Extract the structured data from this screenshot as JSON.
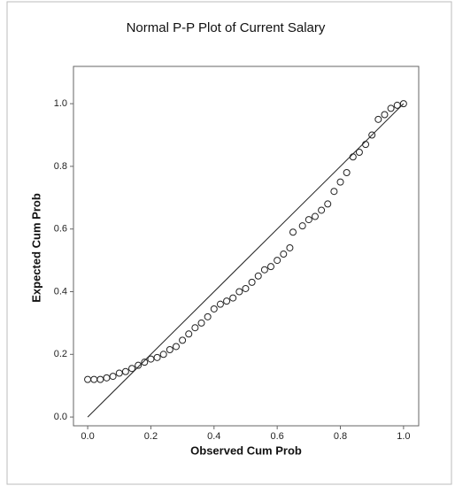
{
  "chart_data": {
    "type": "scatter",
    "title": "Normal P-P Plot of Current Salary",
    "xlabel": "Observed Cum Prob",
    "ylabel": "Expected Cum Prob",
    "x": [
      0.0,
      0.02,
      0.04,
      0.06,
      0.08,
      0.1,
      0.12,
      0.14,
      0.16,
      0.18,
      0.2,
      0.22,
      0.24,
      0.26,
      0.28,
      0.3,
      0.32,
      0.34,
      0.36,
      0.38,
      0.4,
      0.42,
      0.44,
      0.46,
      0.48,
      0.5,
      0.52,
      0.54,
      0.56,
      0.58,
      0.6,
      0.62,
      0.64,
      0.65,
      0.68,
      0.7,
      0.72,
      0.74,
      0.76,
      0.78,
      0.8,
      0.82,
      0.84,
      0.86,
      0.88,
      0.9,
      0.92,
      0.94,
      0.96,
      0.98,
      1.0
    ],
    "values": [
      0.12,
      0.12,
      0.12,
      0.125,
      0.13,
      0.14,
      0.145,
      0.155,
      0.165,
      0.175,
      0.185,
      0.19,
      0.2,
      0.215,
      0.225,
      0.245,
      0.265,
      0.285,
      0.3,
      0.32,
      0.345,
      0.36,
      0.37,
      0.38,
      0.4,
      0.41,
      0.43,
      0.45,
      0.47,
      0.48,
      0.5,
      0.52,
      0.54,
      0.59,
      0.61,
      0.63,
      0.64,
      0.66,
      0.68,
      0.72,
      0.75,
      0.78,
      0.83,
      0.845,
      0.87,
      0.9,
      0.95,
      0.965,
      0.985,
      0.995,
      1.0
    ],
    "reference_line": {
      "x": [
        0,
        1
      ],
      "y": [
        0,
        1
      ]
    },
    "marker_color": "#222222",
    "xlim": [
      -0.045,
      1.048
    ],
    "ylim": [
      -0.028,
      1.119
    ],
    "xticks": [
      {
        "value": 0,
        "label": "0.0"
      },
      0.2,
      0.4,
      0.6,
      0.8,
      {
        "value": 1,
        "label": "1.0"
      }
    ],
    "yticks": [
      {
        "value": 0,
        "label": "0.0"
      },
      0.2,
      0.4,
      0.6,
      0.8,
      {
        "value": 1,
        "label": "1.0"
      }
    ]
  }
}
